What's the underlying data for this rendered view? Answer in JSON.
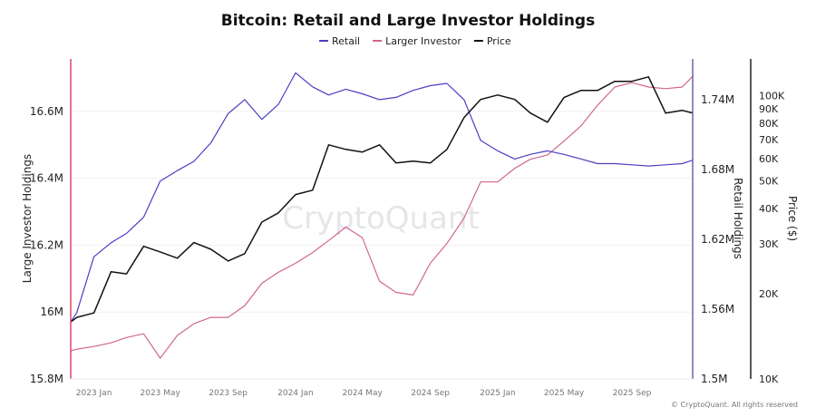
{
  "chart_data": {
    "type": "line",
    "title": "Bitcoin: Retail and Large Investor Holdings",
    "legend": {
      "placement": "top-center",
      "entries": [
        "Retail",
        "Larger Investor",
        "Price"
      ]
    },
    "x_ticks": [
      {
        "date": "2023-01-01",
        "label": "2023 Jan"
      },
      {
        "date": "2023-05-01",
        "label": "2023 May"
      },
      {
        "date": "2023-09-01",
        "label": "2023 Sep"
      },
      {
        "date": "2024-01-01",
        "label": "2024 Jan"
      },
      {
        "date": "2024-05-01",
        "label": "2024 May"
      },
      {
        "date": "2024-09-01",
        "label": "2024 Sep"
      },
      {
        "date": "2025-01-01",
        "label": "2025 Jan"
      },
      {
        "date": "2025-05-01",
        "label": "2025 May"
      },
      {
        "date": "2025-09-01",
        "label": "2025 Sep"
      }
    ],
    "x_range": [
      "2022-11-20",
      "2025-12-20"
    ],
    "axes": {
      "left": {
        "label": "Large Investor Holdings",
        "range": [
          15.8,
          16.757
        ],
        "unit": "M",
        "ticks": [
          {
            "v": 15.8,
            "label": "15.8M"
          },
          {
            "v": 16.0,
            "label": "16M"
          },
          {
            "v": 16.2,
            "label": "16.2M"
          },
          {
            "v": 16.4,
            "label": "16.4M"
          },
          {
            "v": 16.6,
            "label": "16.6M"
          }
        ],
        "color": "#e0456f"
      },
      "right": {
        "label": "Retail Holdings",
        "range": [
          1.5,
          1.775
        ],
        "unit": "M",
        "ticks": [
          {
            "v": 1.5,
            "label": "1.5M"
          },
          {
            "v": 1.56,
            "label": "1.56M"
          },
          {
            "v": 1.62,
            "label": "1.62M"
          },
          {
            "v": 1.68,
            "label": "1.68M"
          },
          {
            "v": 1.74,
            "label": "1.74M"
          }
        ],
        "color": "#6c63a8"
      },
      "price": {
        "label": "Price ($)",
        "scale": "log",
        "range": [
          10000,
          135000
        ],
        "ticks": [
          {
            "v": 10000,
            "label": "10K"
          },
          {
            "v": 20000,
            "label": "20K"
          },
          {
            "v": 30000,
            "label": "30K"
          },
          {
            "v": 40000,
            "label": "40K"
          },
          {
            "v": 50000,
            "label": "50K"
          },
          {
            "v": 60000,
            "label": "60K"
          },
          {
            "v": 70000,
            "label": "70K"
          },
          {
            "v": 80000,
            "label": "80K"
          },
          {
            "v": 90000,
            "label": "90K"
          },
          {
            "v": 100000,
            "label": "100K"
          }
        ],
        "color": "#222222"
      }
    },
    "grid": true,
    "x": [
      "2022-11-20",
      "2022-12-01",
      "2023-01-01",
      "2023-02-01",
      "2023-03-01",
      "2023-04-01",
      "2023-05-01",
      "2023-06-01",
      "2023-07-01",
      "2023-08-01",
      "2023-09-01",
      "2023-10-01",
      "2023-11-01",
      "2023-12-01",
      "2024-01-01",
      "2024-02-01",
      "2024-03-01",
      "2024-04-01",
      "2024-05-01",
      "2024-06-01",
      "2024-07-01",
      "2024-08-01",
      "2024-09-01",
      "2024-10-01",
      "2024-11-01",
      "2024-12-01",
      "2025-01-01",
      "2025-02-01",
      "2025-03-01",
      "2025-04-01",
      "2025-05-01",
      "2025-06-01",
      "2025-07-01",
      "2025-08-01",
      "2025-09-01",
      "2025-10-01",
      "2025-11-01",
      "2025-12-01",
      "2025-12-20"
    ],
    "series": [
      {
        "name": "Retail",
        "axis": "right",
        "color": "#4a3fc4",
        "values": [
          1.549,
          1.557,
          1.605,
          1.617,
          1.625,
          1.639,
          1.67,
          1.679,
          1.687,
          1.703,
          1.728,
          1.74,
          1.723,
          1.736,
          1.763,
          1.751,
          1.744,
          1.749,
          1.745,
          1.74,
          1.742,
          1.748,
          1.752,
          1.754,
          1.74,
          1.705,
          1.696,
          1.689,
          1.693,
          1.696,
          1.693,
          1.689,
          1.685,
          1.685,
          1.684,
          1.683,
          1.684,
          1.685,
          1.688
        ]
      },
      {
        "name": "Larger Investor",
        "axis": "left",
        "color": "#d0668e",
        "values": [
          15.884,
          15.889,
          15.897,
          15.908,
          15.924,
          15.935,
          15.862,
          15.93,
          15.965,
          15.984,
          15.984,
          16.019,
          16.086,
          16.119,
          16.146,
          16.178,
          16.214,
          16.254,
          16.222,
          16.092,
          16.059,
          16.051,
          16.146,
          16.205,
          16.281,
          16.389,
          16.389,
          16.43,
          16.457,
          16.47,
          16.511,
          16.557,
          16.619,
          16.673,
          16.686,
          16.673,
          16.668,
          16.673,
          16.705
        ]
      },
      {
        "name": "Price",
        "axis": "price",
        "color": "#111111",
        "values": [
          15900,
          16500,
          17100,
          23900,
          23500,
          29400,
          28100,
          26700,
          30300,
          28700,
          26100,
          27700,
          35800,
          38600,
          44800,
          46400,
          67100,
          64700,
          63300,
          67100,
          57900,
          58800,
          57900,
          64700,
          83800,
          97100,
          100700,
          97100,
          86900,
          80700,
          98600,
          104500,
          104500,
          112500,
          112500,
          116700,
          86900,
          88900,
          86900
        ]
      }
    ],
    "watermark": "CryptoQuant",
    "copyright": "© CryptoQuant. All rights reserved"
  }
}
